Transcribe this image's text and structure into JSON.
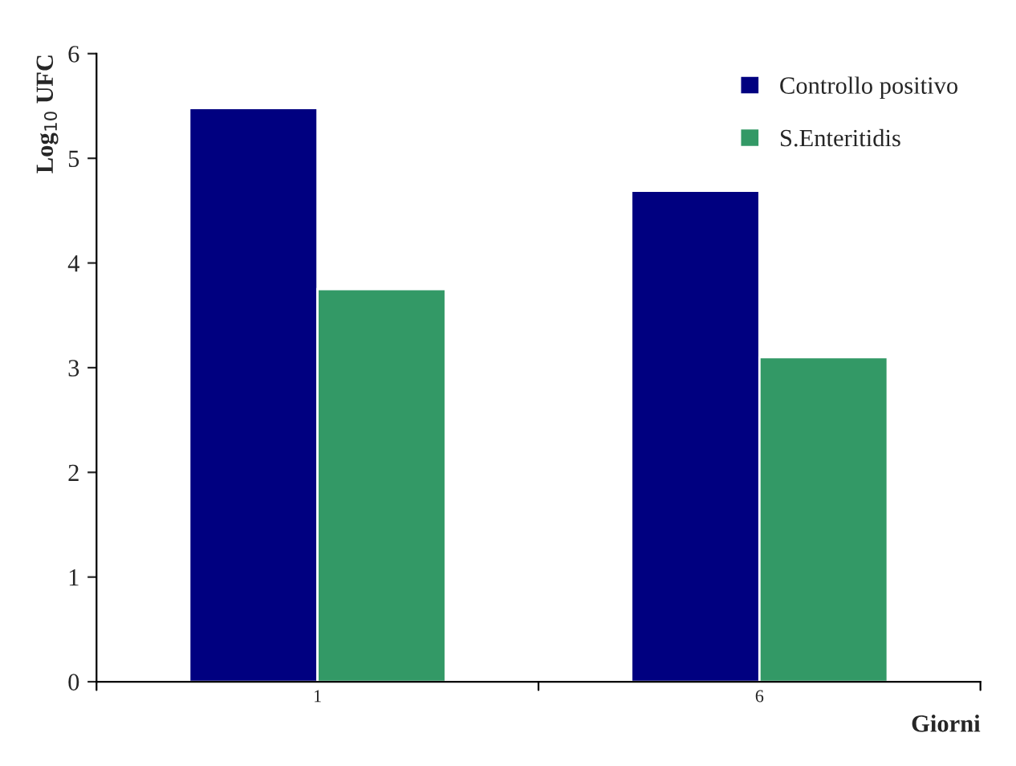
{
  "chart_data": {
    "type": "bar",
    "xlabel": "Giorni",
    "ylabel": "Log$_{10}$ UFC",
    "categories": [
      "1",
      "6"
    ],
    "series": [
      {
        "name": "Controllo positivo",
        "color": "#000080",
        "values": [
          5.48,
          4.69
        ]
      },
      {
        "name": "S.Enteritidis",
        "color": "#339966",
        "values": [
          3.75,
          3.1
        ]
      }
    ],
    "ylim": [
      0,
      6
    ],
    "yticks": [
      0,
      1,
      2,
      3,
      4,
      5,
      6
    ],
    "grid": false,
    "legend": "top right"
  }
}
